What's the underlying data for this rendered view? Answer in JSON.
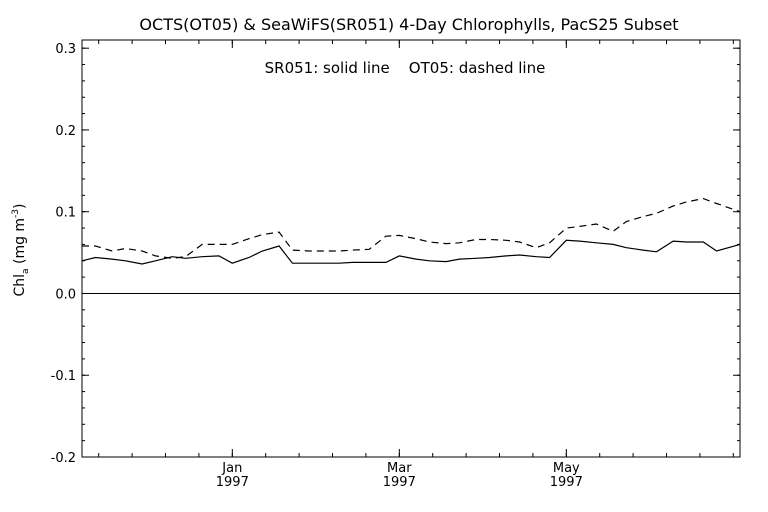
{
  "chart_data": {
    "type": "line",
    "title": "OCTS(OT05) & SeaWiFS(SR051) 4-Day Chlorophylls, PacS25 Subset",
    "annotation": "SR051: solid line    OT05: dashed line",
    "ylabel": "Chl",
    "ylabel_sub": "a",
    "ylabel_units": " (mg m",
    "ylabel_sup": "-3",
    "ylabel_close": ")",
    "xlabel": "",
    "ylim": [
      -0.2,
      0.31
    ],
    "yticks": [
      -0.2,
      -0.1,
      0.0,
      0.1,
      0.2,
      0.3
    ],
    "ytick_labels": [
      "-0.2",
      "-0.1",
      "0.0",
      "0.1",
      "0.2",
      "0.3"
    ],
    "xlim_day_of_year": [
      -45,
      152
    ],
    "xticks": [
      {
        "month": "Jan",
        "year": "1997",
        "day": 0
      },
      {
        "month": "Mar",
        "year": "1997",
        "day": 50
      },
      {
        "month": "May",
        "year": "1997",
        "day": 100
      }
    ],
    "zero_line": true,
    "grid": false,
    "series": [
      {
        "name": "SR051",
        "style": "solid",
        "color": "#000000",
        "x": [
          -45,
          -41,
          -36,
          -32,
          -27,
          -23,
          -18,
          -14,
          -9,
          -4,
          0,
          5,
          9,
          14,
          18,
          23,
          27,
          32,
          36,
          41,
          46,
          50,
          55,
          59,
          64,
          68,
          73,
          77,
          82,
          86,
          91,
          95,
          100,
          104,
          109,
          114,
          118,
          123,
          127,
          132,
          136,
          141,
          145,
          152
        ],
        "y": [
          0.04,
          0.044,
          0.042,
          0.04,
          0.036,
          0.04,
          0.045,
          0.043,
          0.045,
          0.046,
          0.037,
          0.044,
          0.052,
          0.058,
          0.037,
          0.037,
          0.037,
          0.037,
          0.038,
          0.038,
          0.038,
          0.046,
          0.042,
          0.04,
          0.039,
          0.042,
          0.043,
          0.044,
          0.046,
          0.047,
          0.045,
          0.044,
          0.065,
          0.064,
          0.062,
          0.06,
          0.056,
          0.053,
          0.051,
          0.064,
          0.063,
          0.063,
          0.052,
          0.06
        ]
      },
      {
        "name": "OT05",
        "style": "dashed",
        "color": "#000000",
        "x": [
          -45,
          -41,
          -36,
          -32,
          -27,
          -23,
          -18,
          -14,
          -9,
          -4,
          0,
          5,
          9,
          14,
          18,
          23,
          27,
          32,
          36,
          41,
          46,
          50,
          55,
          59,
          64,
          68,
          73,
          77,
          82,
          86,
          91,
          95,
          100,
          104,
          109,
          114,
          118,
          123,
          127,
          132,
          136,
          141,
          145,
          152
        ],
        "y": [
          0.058,
          0.058,
          0.052,
          0.055,
          0.052,
          0.046,
          0.043,
          0.045,
          0.06,
          0.06,
          0.06,
          0.067,
          0.072,
          0.075,
          0.053,
          0.052,
          0.052,
          0.052,
          0.053,
          0.054,
          0.07,
          0.071,
          0.067,
          0.063,
          0.061,
          0.062,
          0.066,
          0.066,
          0.065,
          0.063,
          0.056,
          0.062,
          0.08,
          0.082,
          0.085,
          0.076,
          0.088,
          0.094,
          0.098,
          0.107,
          0.112,
          0.116,
          0.11,
          0.1
        ]
      }
    ]
  }
}
